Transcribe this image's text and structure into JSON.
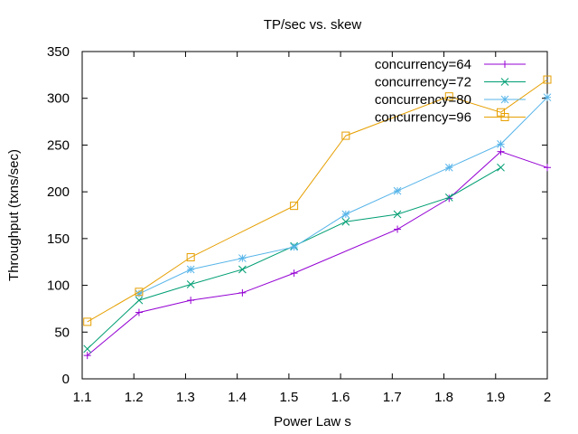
{
  "chart_data": {
    "type": "line",
    "title": "TP/sec vs. skew",
    "xlabel": "Power Law s",
    "ylabel": "Throughput (txns/sec)",
    "xlim": [
      1.1,
      2.0
    ],
    "ylim": [
      0,
      350
    ],
    "xticks": [
      "1.1",
      "1.2",
      "1.3",
      "1.4",
      "1.5",
      "1.6",
      "1.7",
      "1.8",
      "1.9",
      "2"
    ],
    "yticks": [
      "0",
      "50",
      "100",
      "150",
      "200",
      "250",
      "300",
      "350"
    ],
    "grid": false,
    "legend_position": "top-right",
    "series": [
      {
        "name": "concurrency=64",
        "color": "#9400d3",
        "marker": "plus",
        "x": [
          1.11,
          1.21,
          1.31,
          1.41,
          1.51,
          1.71,
          1.81,
          1.91,
          2.0
        ],
        "y": [
          25,
          71,
          84,
          92,
          113,
          160,
          193,
          243,
          226
        ]
      },
      {
        "name": "concurrency=72",
        "color": "#009e73",
        "marker": "cross",
        "x": [
          1.11,
          1.21,
          1.31,
          1.41,
          1.51,
          1.61,
          1.71,
          1.81,
          1.91
        ],
        "y": [
          32,
          84,
          101,
          117,
          142,
          168,
          176,
          194,
          226
        ]
      },
      {
        "name": "concurrency=80",
        "color": "#56b4e9",
        "marker": "star",
        "x": [
          1.21,
          1.31,
          1.41,
          1.51,
          1.61,
          1.71,
          1.81,
          1.91,
          2.0
        ],
        "y": [
          91,
          117,
          129,
          141,
          176,
          201,
          226,
          251,
          301
        ]
      },
      {
        "name": "concurrency=96",
        "color": "#e69f00",
        "marker": "square",
        "x": [
          1.11,
          1.21,
          1.31,
          1.51,
          1.61,
          1.81,
          1.91,
          2.0
        ],
        "y": [
          61,
          93,
          130,
          185,
          260,
          302,
          285,
          320
        ]
      }
    ]
  }
}
